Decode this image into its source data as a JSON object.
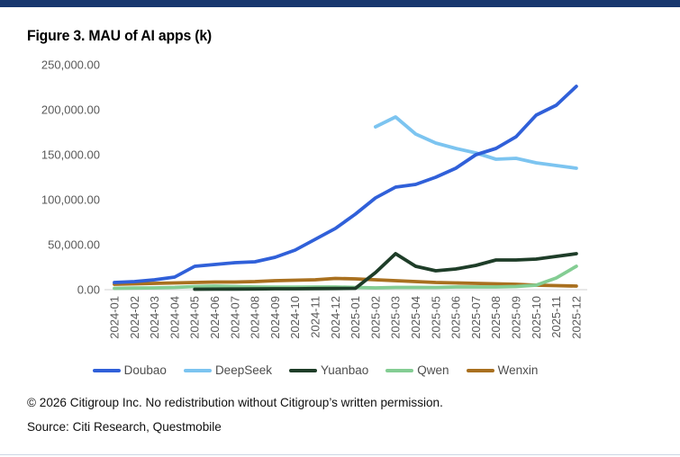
{
  "header": {
    "title": "Figure 3. MAU of AI apps (k)"
  },
  "colors": {
    "top_bar": "#17376e",
    "axis_text": "#595959",
    "baseline": "#d9d9d9"
  },
  "chart_data": {
    "type": "line",
    "title": "Figure 3. MAU of AI apps (k)",
    "unit": "k",
    "grid": false,
    "legend_position": "bottom",
    "ylim": [
      0,
      250000
    ],
    "y_ticks": [
      "0.00",
      "50,000.00",
      "100,000.00",
      "150,000.00",
      "200,000.00",
      "250,000.00"
    ],
    "categories": [
      "2024-01",
      "2024-02",
      "2024-03",
      "2024-04",
      "2024-05",
      "2024-06",
      "2024-07",
      "2024-08",
      "2024-09",
      "2024-10",
      "2024-11",
      "2024-12",
      "2025-01",
      "2025-02",
      "2025-03",
      "2025-04",
      "2025-05",
      "2025-06",
      "2025-07",
      "2025-08",
      "2025-09",
      "2025-10",
      "2025-11",
      "2025-12"
    ],
    "series": [
      {
        "name": "Doubao",
        "color": "#3060d9",
        "values": [
          8000,
          9000,
          11000,
          14000,
          26000,
          28000,
          30000,
          31000,
          36000,
          44000,
          56000,
          68000,
          84000,
          102000,
          114000,
          117000,
          125000,
          135000,
          150000,
          157000,
          170000,
          194000,
          205000,
          226000
        ]
      },
      {
        "name": "DeepSeek",
        "color": "#7cc4f0",
        "values": [
          null,
          null,
          null,
          null,
          null,
          null,
          null,
          null,
          null,
          null,
          null,
          null,
          null,
          181000,
          192000,
          173000,
          163000,
          157000,
          152000,
          145000,
          146000,
          141000,
          138000,
          135000
        ]
      },
      {
        "name": "Yuanbao",
        "color": "#1e3d28",
        "values": [
          null,
          null,
          null,
          null,
          500,
          600,
          700,
          800,
          1000,
          1000,
          1200,
          1300,
          1500,
          19000,
          40000,
          26000,
          21000,
          23000,
          27000,
          33000,
          33000,
          34000,
          37000,
          40000
        ]
      },
      {
        "name": "Qwen",
        "color": "#84cd93",
        "values": [
          1500,
          1800,
          2000,
          2500,
          3500,
          4000,
          3500,
          3000,
          2800,
          2800,
          3000,
          3000,
          2500,
          2000,
          2500,
          2500,
          2500,
          3000,
          3000,
          3000,
          3500,
          5000,
          13000,
          26000
        ]
      },
      {
        "name": "Wenxin",
        "color": "#a9701f",
        "values": [
          6000,
          6500,
          7000,
          7500,
          8000,
          8500,
          8500,
          9000,
          10000,
          10500,
          11000,
          12500,
          12000,
          11000,
          10000,
          9000,
          8000,
          7500,
          7000,
          6500,
          6000,
          5000,
          4500,
          4000
        ]
      }
    ]
  },
  "footer": {
    "copyright": "© 2026 Citigroup Inc. No redistribution without Citigroup’s written permission.",
    "source": "Source: Citi Research, Questmobile"
  }
}
